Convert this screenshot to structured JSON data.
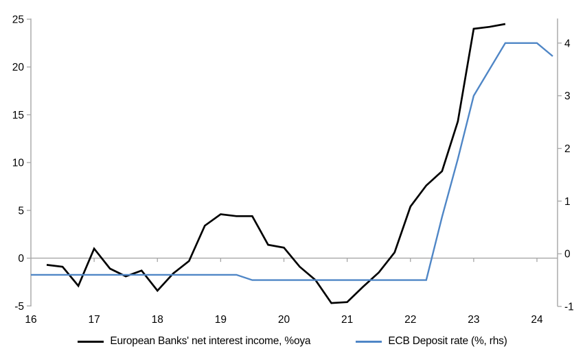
{
  "legend": {
    "items": [
      {
        "label": "European Banks' net interest income, %oya",
        "color": "#000000"
      },
      {
        "label": "ECB Deposit rate (%, rhs)",
        "color": "#4f86c6"
      }
    ]
  },
  "chart_data": {
    "type": "line",
    "title": "",
    "grid": "zero-line-only",
    "legend_position": "bottom-center",
    "axis_color": "#a6a6a6",
    "x_axis": {
      "tick_labels": [
        "16",
        "17",
        "18",
        "19",
        "20",
        "21",
        "22",
        "23",
        "24"
      ],
      "tick_values": [
        16,
        17,
        18,
        19,
        20,
        21,
        22,
        23,
        24
      ],
      "range": [
        16,
        24.33
      ]
    },
    "y_left_axis": {
      "tick_values": [
        25,
        20,
        15,
        10,
        5,
        0,
        -5
      ],
      "range": [
        -5.1,
        25.1
      ]
    },
    "y_right_axis": {
      "tick_values": [
        4,
        3,
        2,
        1,
        0,
        -1
      ],
      "range": [
        -1.0,
        4.47
      ]
    },
    "series": [
      {
        "name": "European Banks' net interest income, %oya",
        "axis": "left",
        "color": "#000000",
        "x_start": 16.25,
        "x_step": 0.25,
        "values": [
          -0.7,
          -0.9,
          -2.9,
          1.0,
          -1.1,
          -1.9,
          -1.3,
          -3.4,
          -1.6,
          -0.3,
          3.4,
          4.6,
          4.4,
          4.4,
          1.4,
          1.1,
          -0.9,
          -2.3,
          -4.7,
          -4.6,
          -3.0,
          -1.5,
          0.6,
          5.4,
          7.6,
          9.1,
          14.3,
          24.0,
          24.2,
          24.5
        ]
      },
      {
        "name": "ECB Deposit rate (%, rhs)",
        "axis": "right",
        "color": "#4f86c6",
        "x_start": 16.0,
        "x_step": 0.25,
        "values": [
          -0.4,
          -0.4,
          -0.4,
          -0.4,
          -0.4,
          -0.4,
          -0.4,
          -0.4,
          -0.4,
          -0.4,
          -0.4,
          -0.4,
          -0.4,
          -0.4,
          -0.5,
          -0.5,
          -0.5,
          -0.5,
          -0.5,
          -0.5,
          -0.5,
          -0.5,
          -0.5,
          -0.5,
          -0.5,
          -0.5,
          0.7,
          1.8,
          3.0,
          3.5,
          4.0,
          4.0,
          4.0,
          3.75
        ]
      }
    ]
  }
}
